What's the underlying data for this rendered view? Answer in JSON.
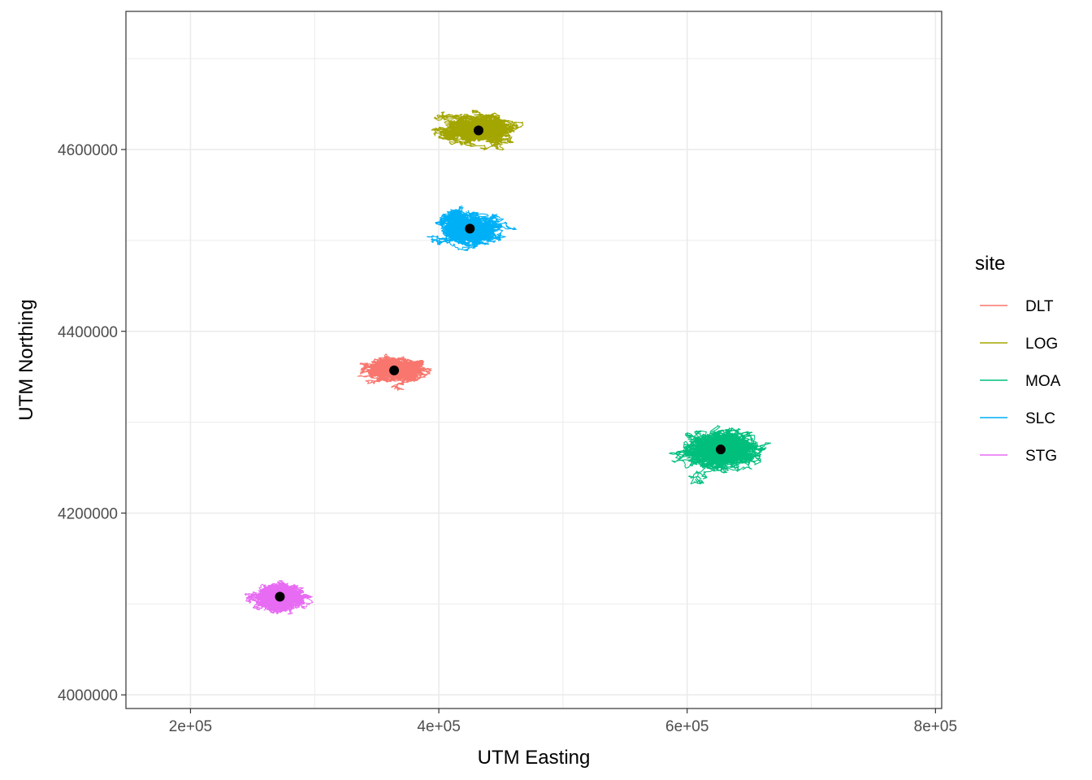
{
  "chart_data": {
    "type": "line",
    "xlabel": "UTM Easting",
    "ylabel": "UTM Northing",
    "xlim": [
      148000,
      805000
    ],
    "ylim": [
      3985000,
      4752000
    ],
    "x_ticks": [
      200000,
      400000,
      600000,
      800000
    ],
    "x_tick_labels": [
      "2e+05",
      "4e+05",
      "6e+05",
      "8e+05"
    ],
    "y_ticks": [
      4000000,
      4200000,
      4400000,
      4600000
    ],
    "y_tick_labels": [
      "4000000",
      "4200000",
      "4400000",
      "4600000"
    ],
    "grid": true,
    "legend": {
      "title": "site",
      "placement": "right"
    },
    "series": [
      {
        "name": "DLT",
        "color": "#F8766D",
        "centroid": [
          364000,
          4357000
        ],
        "spread": [
          36000,
          19000
        ]
      },
      {
        "name": "LOG",
        "color": "#A3A500",
        "centroid": [
          432000,
          4621000
        ],
        "spread": [
          42000,
          25000
        ]
      },
      {
        "name": "MOA",
        "color": "#00BF7D",
        "centroid": [
          627000,
          4270000
        ],
        "spread": [
          46000,
          33000
        ]
      },
      {
        "name": "SLC",
        "color": "#00B0F6",
        "centroid": [
          425000,
          4513000
        ],
        "spread": [
          38000,
          28000
        ]
      },
      {
        "name": "STG",
        "color": "#E76BF3",
        "centroid": [
          272000,
          4108000
        ],
        "spread": [
          33000,
          26000
        ]
      }
    ],
    "centroid_color": "#000000"
  }
}
